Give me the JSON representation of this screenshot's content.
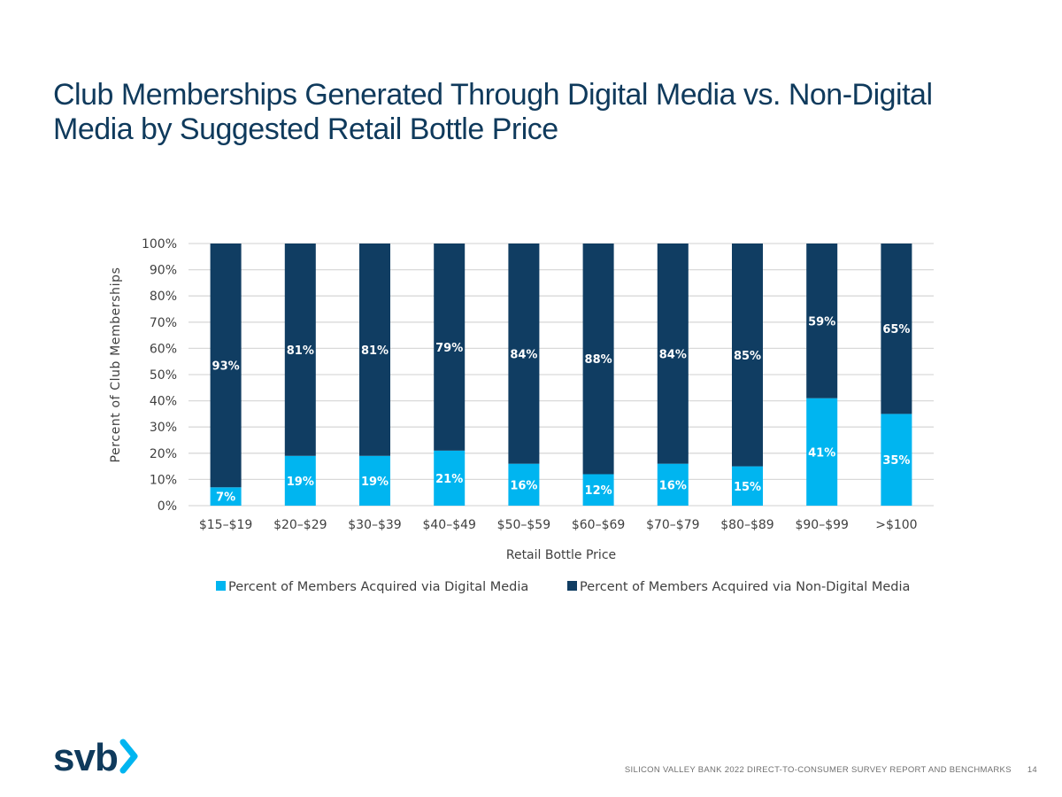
{
  "slide": {
    "title": "Club Memberships Generated Through Digital Media vs. Non-Digital Media by Suggested Retail Bottle Price",
    "logo_text": "svb",
    "footer_text": "SILICON VALLEY BANK 2022 DIRECT-TO-CONSUMER SURVEY REPORT AND BENCHMARKS",
    "page_number": "14"
  },
  "colors": {
    "title": "#0f3a5c",
    "digital": "#00b5f0",
    "non_digital": "#103d62",
    "gridline": "#d9d9d9",
    "logo_accent": "#00b5f0"
  },
  "chart_data": {
    "type": "bar",
    "stacked": true,
    "categories": [
      "$15–$19",
      "$20–$29",
      "$30–$39",
      "$40–$49",
      "$50–$59",
      "$60–$69",
      "$70–$79",
      "$80–$89",
      "$90–$99",
      ">$100"
    ],
    "series": [
      {
        "name": "Percent of Members Acquired via Digital Media",
        "values": [
          7,
          19,
          19,
          21,
          16,
          12,
          16,
          15,
          41,
          35
        ],
        "labels": [
          "7%",
          "19%",
          "19%",
          "21%",
          "16%",
          "12%",
          "16%",
          "15%",
          "41%",
          "35%"
        ]
      },
      {
        "name": "Percent of Members Acquired via Non-Digital Media",
        "values": [
          93,
          81,
          81,
          79,
          84,
          88,
          84,
          85,
          59,
          65
        ],
        "labels": [
          "93%",
          "81%",
          "81%",
          "79%",
          "84%",
          "88%",
          "84%",
          "85%",
          "59%",
          "65%"
        ]
      }
    ],
    "xlabel": "Retail Bottle Price",
    "ylabel": "Percent of Club Memberships",
    "ylim": [
      0,
      100
    ],
    "yticks": [
      "0%",
      "10%",
      "20%",
      "30%",
      "40%",
      "50%",
      "60%",
      "70%",
      "80%",
      "90%",
      "100%"
    ],
    "grid": true,
    "legend_position": "bottom"
  }
}
